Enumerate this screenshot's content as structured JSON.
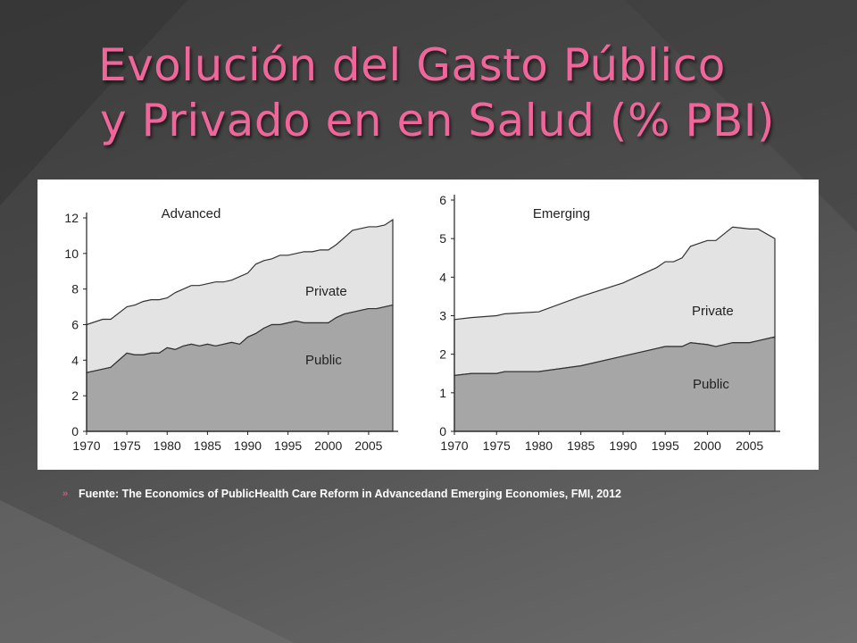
{
  "slide": {
    "title_line1": "Evolución del Gasto Público",
    "title_line2": "y Privado en en Salud (% PBI)",
    "source": "Fuente: The Economics of PublicHealth Care Reform in Advancedand Emerging Economies, FMI, 2012",
    "bullet_glyph": "»",
    "colors": {
      "title": "#f0669b",
      "public_area": "#a6a6a6",
      "private_area": "#e3e3e3",
      "panel": "#ffffff"
    }
  },
  "chart_data": [
    {
      "type": "area",
      "stacked": true,
      "title": "Advanced",
      "xlabel": "",
      "ylabel": "",
      "xlim": [
        1970,
        2008
      ],
      "ylim": [
        0,
        12
      ],
      "xticks": [
        1970,
        1975,
        1980,
        1985,
        1990,
        1995,
        2000,
        2005
      ],
      "yticks": [
        0,
        2,
        4,
        6,
        8,
        10,
        12
      ],
      "grid": false,
      "legend": "none",
      "x": [
        1970,
        1972,
        1973,
        1975,
        1976,
        1977,
        1978,
        1979,
        1980,
        1981,
        1982,
        1983,
        1984,
        1985,
        1986,
        1987,
        1988,
        1989,
        1990,
        1991,
        1992,
        1993,
        1994,
        1995,
        1996,
        1997,
        1998,
        1999,
        2000,
        2001,
        2002,
        2003,
        2004,
        2005,
        2006,
        2007,
        2008
      ],
      "series": [
        {
          "name": "Public",
          "values": [
            3.3,
            3.5,
            3.6,
            4.4,
            4.3,
            4.3,
            4.4,
            4.4,
            4.7,
            4.6,
            4.8,
            4.9,
            4.8,
            4.9,
            4.8,
            4.9,
            5.0,
            4.9,
            5.3,
            5.5,
            5.8,
            6.0,
            6.0,
            6.1,
            6.2,
            6.1,
            6.1,
            6.1,
            6.1,
            6.4,
            6.6,
            6.7,
            6.8,
            6.9,
            6.9,
            7.0,
            7.1
          ]
        },
        {
          "name": "Private",
          "values": [
            2.7,
            2.8,
            2.7,
            2.6,
            2.8,
            3.0,
            3.0,
            3.0,
            2.8,
            3.2,
            3.2,
            3.3,
            3.4,
            3.4,
            3.6,
            3.5,
            3.5,
            3.8,
            3.6,
            3.9,
            3.8,
            3.7,
            3.9,
            3.8,
            3.8,
            4.0,
            4.0,
            4.1,
            4.1,
            4.1,
            4.3,
            4.6,
            4.6,
            4.6,
            4.6,
            4.6,
            4.8
          ]
        }
      ]
    },
    {
      "type": "area",
      "stacked": true,
      "title": "Emerging",
      "xlabel": "",
      "ylabel": "",
      "xlim": [
        1970,
        2008
      ],
      "ylim": [
        0,
        6
      ],
      "xticks": [
        1970,
        1975,
        1980,
        1985,
        1990,
        1995,
        2000,
        2005
      ],
      "yticks": [
        0,
        1,
        2,
        3,
        4,
        5,
        6
      ],
      "grid": false,
      "legend": "none",
      "x": [
        1970,
        1972,
        1975,
        1976,
        1980,
        1985,
        1990,
        1994,
        1995,
        1996,
        1997,
        1998,
        2000,
        2001,
        2003,
        2005,
        2006,
        2008
      ],
      "series": [
        {
          "name": "Public",
          "values": [
            1.45,
            1.5,
            1.5,
            1.55,
            1.55,
            1.7,
            1.95,
            2.15,
            2.2,
            2.2,
            2.2,
            2.3,
            2.25,
            2.2,
            2.3,
            2.3,
            2.35,
            2.45
          ]
        },
        {
          "name": "Private",
          "values": [
            1.45,
            1.45,
            1.5,
            1.5,
            1.55,
            1.8,
            1.9,
            2.1,
            2.2,
            2.2,
            2.3,
            2.5,
            2.7,
            2.75,
            3.0,
            2.95,
            2.9,
            2.55
          ]
        }
      ]
    }
  ]
}
